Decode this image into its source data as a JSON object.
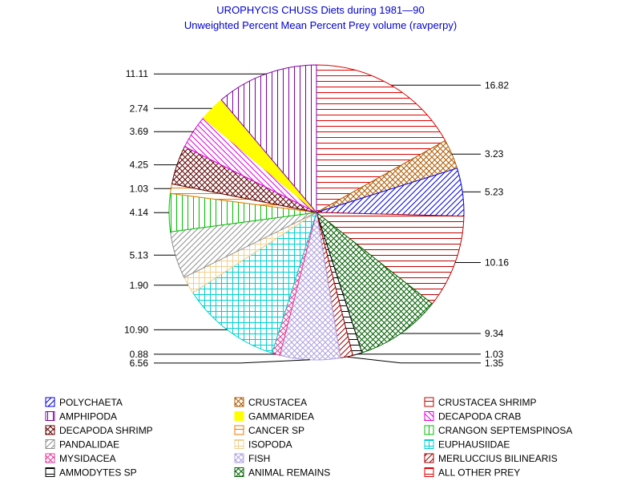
{
  "chart_data": {
    "type": "pie",
    "title": "UROPHYCIS CHUSS Diets during 1981—90",
    "subtitle": "Unweighted Percent Mean Percent Prey  volume (ravperpy)",
    "slices": [
      {
        "name": "ALL OTHER PREY",
        "value": 16.82,
        "label": "16.82",
        "color": "#e00000",
        "pattern": "hlines"
      },
      {
        "name": "CRUSTACEA",
        "value": 3.23,
        "label": "3.23",
        "color": "#b05a00",
        "pattern": "xhatch"
      },
      {
        "name": "POLYCHAETA",
        "value": 5.23,
        "label": "5.23",
        "color": "#0000e0",
        "pattern": "diag-fwd"
      },
      {
        "name": "CRUSTACEA SHRIMP",
        "value": 10.16,
        "label": "10.16",
        "color": "#c00000",
        "pattern": "hlines"
      },
      {
        "name": "ANIMAL REMAINS",
        "value": 9.34,
        "label": "9.34",
        "color": "#006000",
        "pattern": "crosshatch"
      },
      {
        "name": "AMMODYTES SP",
        "value": 1.03,
        "label": "1.03",
        "color": "#000000",
        "pattern": "hlines"
      },
      {
        "name": "MERLUCCIUS BILINEARIS",
        "value": 1.35,
        "label": "1.35",
        "color": "#a00000",
        "pattern": "diag-fwd"
      },
      {
        "name": "FISH",
        "value": 6.56,
        "label": "6.56",
        "color": "#b0a0e0",
        "pattern": "xhatch"
      },
      {
        "name": "MYSIDACEA",
        "value": 0.88,
        "label": "0.88",
        "color": "#e0409a",
        "pattern": "xhatch"
      },
      {
        "name": "EUPHAUSIIDAE",
        "value": 10.9,
        "label": "10.90",
        "color": "#00d0d0",
        "pattern": "grid"
      },
      {
        "name": "ISOPODA",
        "value": 1.9,
        "label": "1.90",
        "color": "#f0d090",
        "pattern": "grid"
      },
      {
        "name": "PANDALIDAE",
        "value": 5.13,
        "label": "5.13",
        "color": "#909090",
        "pattern": "diag-fwd"
      },
      {
        "name": "CRANGON SEPTEMSPINOSA",
        "value": 4.14,
        "label": "4.14",
        "color": "#00c000",
        "pattern": "vlines"
      },
      {
        "name": "CANCER SP",
        "value": 1.03,
        "label": "1.03",
        "color": "#f07800",
        "pattern": "hlines"
      },
      {
        "name": "DECAPODA SHRIMP",
        "value": 4.25,
        "label": "4.25",
        "color": "#600000",
        "pattern": "crosshatch"
      },
      {
        "name": "DECAPODA CRAB",
        "value": 3.69,
        "label": "3.69",
        "color": "#e000e0",
        "pattern": "diag-back"
      },
      {
        "name": "GAMMARIDEA",
        "value": 2.74,
        "label": "2.74",
        "color": "#ffff00",
        "pattern": "solid"
      },
      {
        "name": "AMPHIPODA",
        "value": 11.11,
        "label": "11.11",
        "color": "#8000a0",
        "pattern": "vlines"
      }
    ],
    "legend": {
      "placement": "bottom",
      "entries": [
        {
          "name": "POLYCHAETA",
          "color": "#0000e0",
          "pattern": "diag-fwd"
        },
        {
          "name": "CRUSTACEA",
          "color": "#b05a00",
          "pattern": "xhatch"
        },
        {
          "name": "CRUSTACEA SHRIMP",
          "color": "#c00000",
          "pattern": "hlines"
        },
        {
          "name": "AMPHIPODA",
          "color": "#8000a0",
          "pattern": "vlines"
        },
        {
          "name": "GAMMARIDEA",
          "color": "#ffff00",
          "pattern": "solid"
        },
        {
          "name": "DECAPODA CRAB",
          "color": "#e000e0",
          "pattern": "diag-back"
        },
        {
          "name": "DECAPODA SHRIMP",
          "color": "#600000",
          "pattern": "crosshatch"
        },
        {
          "name": "CANCER SP",
          "color": "#f07800",
          "pattern": "hlines"
        },
        {
          "name": "CRANGON SEPTEMSPINOSA",
          "color": "#00c000",
          "pattern": "vlines"
        },
        {
          "name": "PANDALIDAE",
          "color": "#909090",
          "pattern": "diag-fwd"
        },
        {
          "name": "ISOPODA",
          "color": "#f0d090",
          "pattern": "grid"
        },
        {
          "name": "EUPHAUSIIDAE",
          "color": "#00d0d0",
          "pattern": "grid"
        },
        {
          "name": "MYSIDACEA",
          "color": "#e0409a",
          "pattern": "xhatch"
        },
        {
          "name": "FISH",
          "color": "#b0a0e0",
          "pattern": "xhatch"
        },
        {
          "name": "MERLUCCIUS BILINEARIS",
          "color": "#a00000",
          "pattern": "diag-fwd"
        },
        {
          "name": "AMMODYTES SP",
          "color": "#000000",
          "pattern": "hlines"
        },
        {
          "name": "ANIMAL REMAINS",
          "color": "#006000",
          "pattern": "crosshatch"
        },
        {
          "name": "ALL OTHER PREY",
          "color": "#e00000",
          "pattern": "hlines"
        }
      ]
    }
  }
}
